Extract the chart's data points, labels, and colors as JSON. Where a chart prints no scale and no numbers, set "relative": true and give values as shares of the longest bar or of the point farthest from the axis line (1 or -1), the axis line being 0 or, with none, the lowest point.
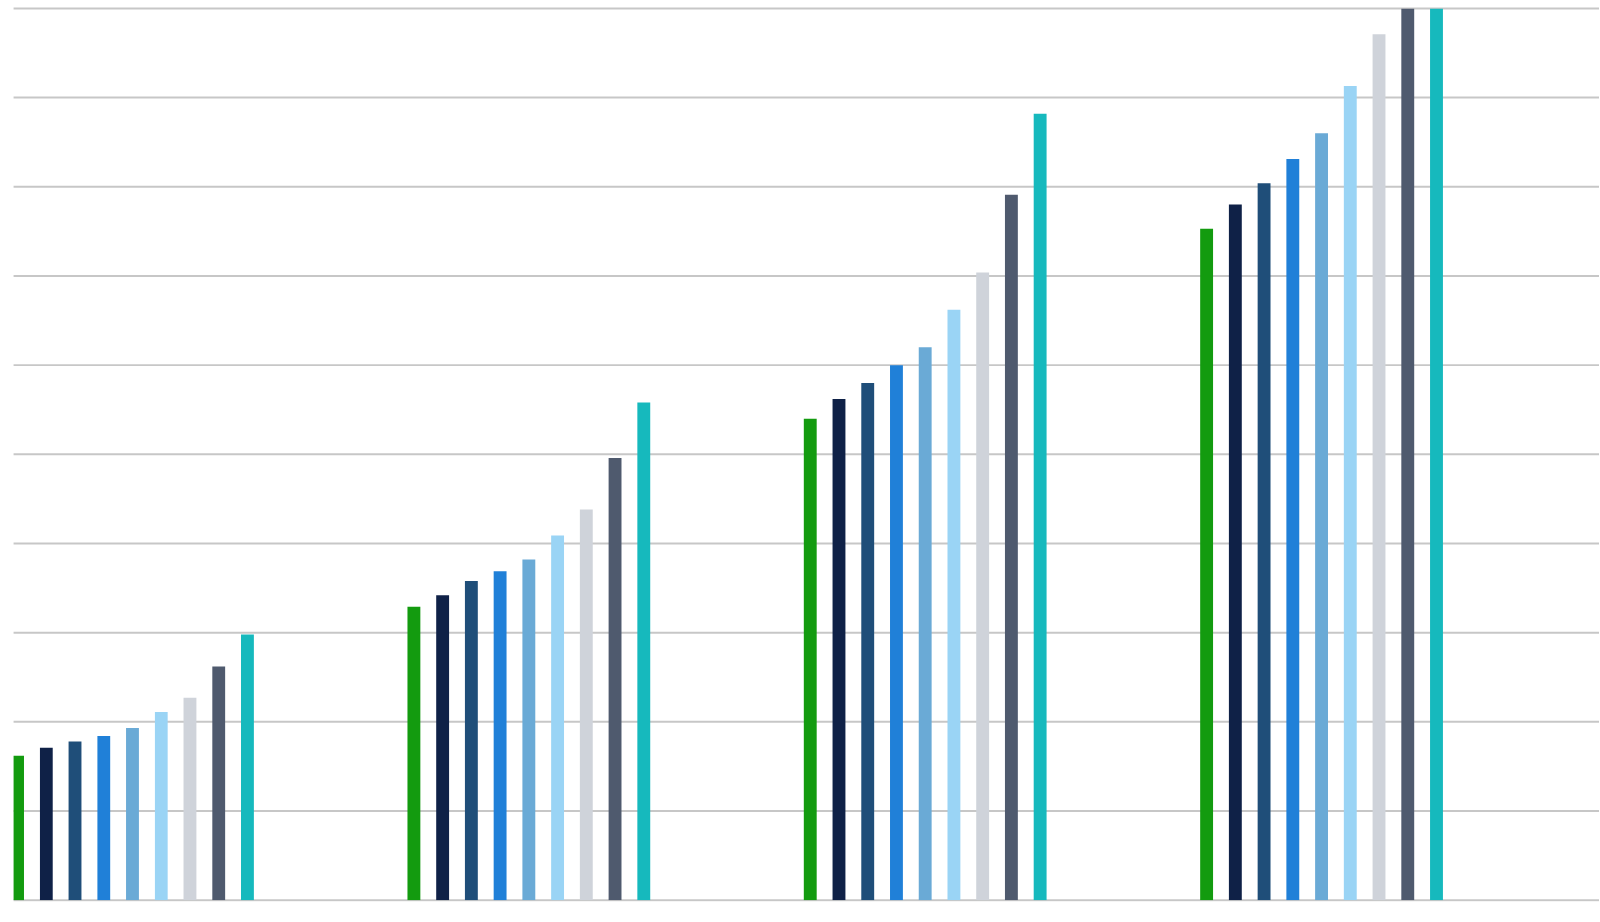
{
  "chart_data": {
    "type": "bar",
    "relative": true,
    "grid": "y",
    "categories": [
      null,
      null,
      null,
      null
    ],
    "series": [
      {
        "color": "#139b0f",
        "values": [
          0.162,
          0.329,
          0.54,
          0.753
        ]
      },
      {
        "color": "#0f2147",
        "values": [
          0.171,
          0.342,
          0.562,
          0.78
        ]
      },
      {
        "color": "#1f4e79",
        "values": [
          0.178,
          0.358,
          0.58,
          0.804
        ]
      },
      {
        "color": "#2080d8",
        "values": [
          0.184,
          0.369,
          0.6,
          0.831
        ]
      },
      {
        "color": "#6aaad6",
        "values": [
          0.193,
          0.382,
          0.62,
          0.86
        ]
      },
      {
        "color": "#9ad4f5",
        "values": [
          0.211,
          0.409,
          0.662,
          0.913
        ]
      },
      {
        "color": "#cfd3da",
        "values": [
          0.227,
          0.438,
          0.704,
          0.971
        ]
      },
      {
        "color": "#4f5a6e",
        "values": [
          0.262,
          0.496,
          0.791,
          1
        ]
      },
      {
        "color": "#16b9bd",
        "values": [
          0.298,
          0.558,
          0.882,
          1
        ]
      }
    ]
  }
}
